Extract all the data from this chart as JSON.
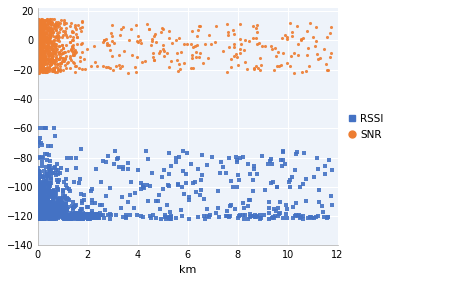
{
  "title": "",
  "xlabel": "km",
  "ylabel": "",
  "xlim": [
    0,
    12
  ],
  "ylim": [
    -140,
    22
  ],
  "yticks": [
    20,
    0,
    -20,
    -40,
    -60,
    -80,
    -100,
    -120,
    -140
  ],
  "xticks": [
    0,
    2,
    4,
    6,
    8,
    10,
    12
  ],
  "rssi_color": "#4472C4",
  "snr_color": "#ED7D31",
  "background_color": "#FFFFFF",
  "plot_bg_color": "#EEF3FA",
  "grid_color": "#FFFFFF",
  "legend_rssi": "RSSI",
  "legend_snr": "SNR",
  "seed": 42
}
